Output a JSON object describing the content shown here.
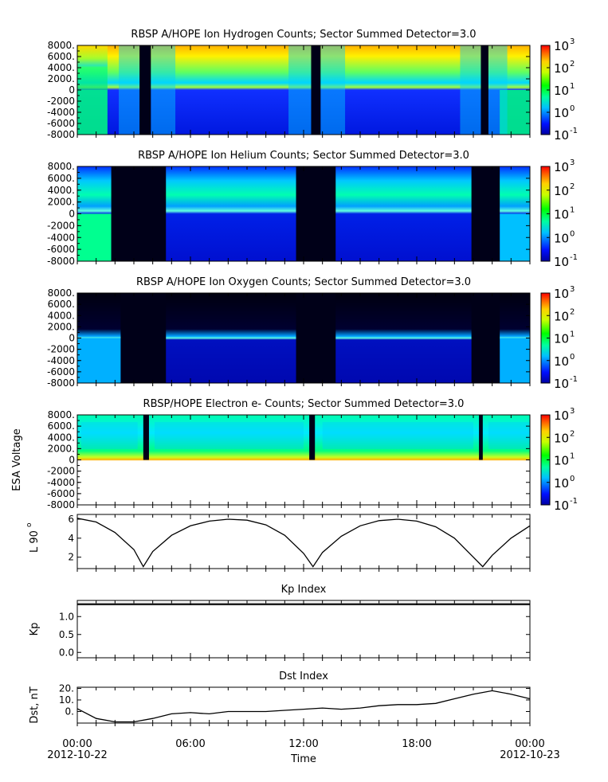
{
  "colors": {
    "low": "#0000c8",
    "mid": "#00ff00",
    "high": "#ff0000",
    "axis": "#000000"
  },
  "chart_data": [
    {
      "type": "heatmap",
      "title": "RBSP A/HOPE  Ion Hydrogen Counts; Sector Summed Detector=3.0",
      "ylabel": "",
      "ylim": [
        -8000,
        8000
      ],
      "yticks": [
        "8000.",
        "6000.",
        "4000.",
        "2000.",
        "0",
        "-2000",
        "-4000",
        "-6000",
        "-8000"
      ],
      "colorbar": {
        "scale": "log",
        "range": [
          0.1,
          1000
        ],
        "labels": [
          "10",
          "10",
          "10",
          "10",
          "10"
        ],
        "exponents": [
          "3",
          "2",
          "1",
          "0",
          "-1"
        ]
      },
      "gaps_hours": [
        [
          3.3,
          3.9
        ],
        [
          12.4,
          12.9
        ],
        [
          21.4,
          21.8
        ]
      ]
    },
    {
      "type": "heatmap",
      "title": "RBSP A/HOPE  Ion Helium Counts; Sector Summed Detector=3.0",
      "ylabel": "",
      "ylim": [
        -8000,
        8000
      ],
      "yticks": [
        "8000.",
        "6000.",
        "4000.",
        "2000.",
        "0",
        "-2000",
        "-4000",
        "-6000",
        "-8000"
      ],
      "colorbar": {
        "scale": "log",
        "range": [
          0.1,
          1000
        ],
        "labels": [
          "10",
          "10",
          "10",
          "10",
          "10"
        ],
        "exponents": [
          "3",
          "2",
          "1",
          "0",
          "-1"
        ]
      },
      "gaps_hours": [
        [
          1.8,
          4.7
        ],
        [
          11.6,
          13.7
        ],
        [
          20.9,
          22.4
        ]
      ]
    },
    {
      "type": "heatmap",
      "title": "RBSP A/HOPE  Ion Oxygen Counts; Sector Summed Detector=3.0",
      "ylabel": "",
      "ylim": [
        -8000,
        8000
      ],
      "yticks": [
        "8000.",
        "6000.",
        "4000.",
        "2000.",
        "0",
        "-2000",
        "-4000",
        "-6000",
        "-8000"
      ],
      "colorbar": {
        "scale": "log",
        "range": [
          0.1,
          1000
        ],
        "labels": [
          "10",
          "10",
          "10",
          "10",
          "10"
        ],
        "exponents": [
          "3",
          "2",
          "1",
          "0",
          "-1"
        ]
      },
      "gaps_hours": [
        [
          2.3,
          4.7
        ],
        [
          11.6,
          13.7
        ],
        [
          20.9,
          22.4
        ]
      ]
    },
    {
      "type": "heatmap",
      "title": "RBSP/HOPE  Electron e-  Counts; Sector Summed Detector=3.0",
      "ylabel": "ESA Voltage",
      "ylim": [
        -8000,
        8000
      ],
      "yticks": [
        "8000.",
        "6000.",
        "4000.",
        "2000.",
        "0",
        "-2000",
        "-4000",
        "-6000",
        "-8000"
      ],
      "colorbar": {
        "scale": "log",
        "range": [
          0.1,
          1000
        ],
        "labels": [
          "10",
          "10",
          "10",
          "10",
          "10"
        ],
        "exponents": [
          "3",
          "2",
          "1",
          "0",
          "-1"
        ]
      },
      "gaps_hours": [
        [
          3.5,
          3.8
        ],
        [
          12.3,
          12.6
        ],
        [
          21.3,
          21.5
        ]
      ]
    },
    {
      "type": "line",
      "title": "",
      "ylabel": "L 90",
      "ylabel_sup": "o",
      "ylim": [
        0.8,
        6.5
      ],
      "yticks": [
        2,
        4,
        6
      ],
      "x_hours": [
        0,
        1,
        2,
        3,
        3.5,
        4,
        5,
        6,
        7,
        8,
        9,
        10,
        11,
        12,
        12.5,
        13,
        14,
        15,
        16,
        17,
        18,
        19,
        20,
        21,
        21.5,
        22,
        23,
        24
      ],
      "values": [
        6.1,
        5.7,
        4.6,
        2.8,
        1.0,
        2.6,
        4.3,
        5.3,
        5.8,
        6.0,
        5.9,
        5.4,
        4.3,
        2.4,
        1.0,
        2.5,
        4.2,
        5.3,
        5.85,
        6.0,
        5.8,
        5.2,
        4.0,
        2.0,
        1.0,
        2.2,
        4.0,
        5.3
      ]
    },
    {
      "type": "line",
      "title": "Kp Index",
      "ylabel": "Kp",
      "ylim": [
        -0.15,
        1.45
      ],
      "yticks": [
        0.0,
        0.5,
        1.0
      ],
      "ytick_labels": [
        "0.0",
        "0.5",
        "1.0"
      ],
      "x_hours": [
        0,
        24
      ],
      "values": [
        1.33,
        1.33
      ]
    },
    {
      "type": "line",
      "title": "Dst Index",
      "ylabel": "Dst, nT",
      "ylim": [
        -10,
        21
      ],
      "yticks": [
        0,
        10,
        20
      ],
      "ytick_labels": [
        "0.",
        "10.",
        "20."
      ],
      "x_hours": [
        0,
        1,
        2,
        3,
        4,
        5,
        6,
        7,
        8,
        9,
        10,
        11,
        12,
        13,
        14,
        15,
        16,
        17,
        18,
        19,
        20,
        21,
        22,
        23,
        24
      ],
      "values": [
        2.5,
        -6,
        -9,
        -9,
        -6,
        -2,
        -1,
        -2,
        0,
        0,
        0,
        1,
        2,
        3,
        2,
        3,
        5,
        6,
        6,
        7,
        11,
        15,
        18,
        15,
        11
      ]
    }
  ],
  "xaxis": {
    "label": "Time",
    "ticks": [
      {
        "hour": 0,
        "time": "00:00",
        "date": "2012-10-22"
      },
      {
        "hour": 6,
        "time": "06:00",
        "date": ""
      },
      {
        "hour": 12,
        "time": "12:00",
        "date": ""
      },
      {
        "hour": 18,
        "time": "18:00",
        "date": ""
      },
      {
        "hour": 24,
        "time": "00:00",
        "date": "2012-10-23"
      }
    ]
  }
}
